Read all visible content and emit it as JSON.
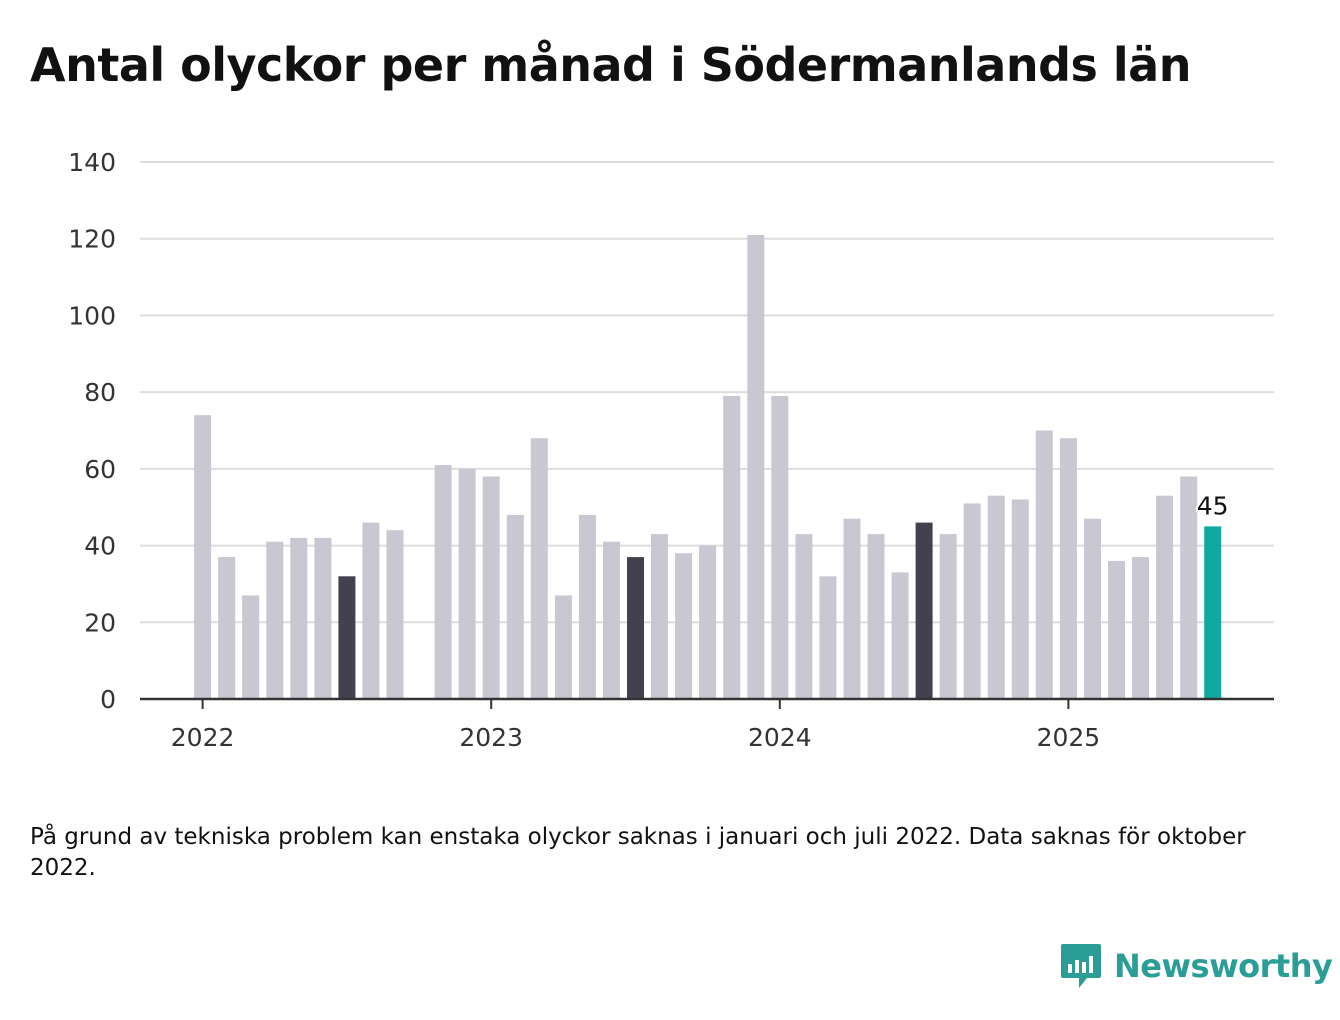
{
  "title": "Antal olyckor per månad i Södermanlands län",
  "note": "På grund av tekniska problem kan enstaka olyckor saknas i januari och juli 2022. Data saknas för oktober 2022.",
  "brand": {
    "name": "Newsworthy",
    "icon": "newsworthy-logo-icon",
    "color": "#2a9d96"
  },
  "colors": {
    "default": "#c8c7d2",
    "july": "#42414f",
    "latest": "#11a89f",
    "grid": "#dddddd",
    "axis": "#333333"
  },
  "chart_data": {
    "type": "bar",
    "title": "Antal olyckor per månad i Södermanlands län",
    "xlabel": "",
    "ylabel": "",
    "ylim": [
      0,
      140
    ],
    "yticks": [
      0,
      20,
      40,
      60,
      80,
      100,
      120,
      140
    ],
    "xticks": [
      "2022",
      "2023",
      "2024",
      "2025"
    ],
    "grid": true,
    "legend": "none",
    "categories": [
      "2022-01",
      "2022-02",
      "2022-03",
      "2022-04",
      "2022-05",
      "2022-06",
      "2022-07",
      "2022-08",
      "2022-09",
      "2022-10",
      "2022-11",
      "2022-12",
      "2023-01",
      "2023-02",
      "2023-03",
      "2023-04",
      "2023-05",
      "2023-06",
      "2023-07",
      "2023-08",
      "2023-09",
      "2023-10",
      "2023-11",
      "2023-12",
      "2024-01",
      "2024-02",
      "2024-03",
      "2024-04",
      "2024-05",
      "2024-06",
      "2024-07",
      "2024-08",
      "2024-09",
      "2024-10",
      "2024-11",
      "2024-12",
      "2025-01",
      "2025-02",
      "2025-03",
      "2025-04",
      "2025-05",
      "2025-06",
      "2025-07"
    ],
    "values": [
      74,
      37,
      27,
      41,
      42,
      42,
      32,
      46,
      44,
      null,
      61,
      60,
      58,
      48,
      68,
      27,
      48,
      41,
      37,
      43,
      38,
      40,
      79,
      121,
      79,
      43,
      32,
      47,
      43,
      33,
      46,
      43,
      51,
      53,
      52,
      70,
      68,
      47,
      36,
      37,
      53,
      58,
      45
    ],
    "highlighted": [
      "2022-07",
      "2023-07",
      "2024-07"
    ],
    "latest": "2025-07",
    "annotations": [
      {
        "category": "2025-07",
        "text": "45"
      }
    ]
  }
}
